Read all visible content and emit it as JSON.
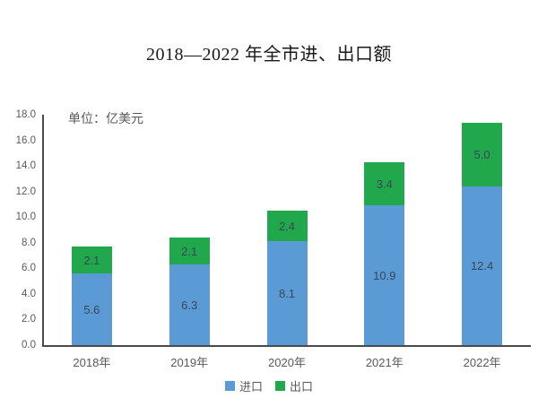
{
  "title": "2018—2022 年全市进、出口额",
  "unit_label": "单位：亿美元",
  "colors": {
    "import": "#5B9BD5",
    "export": "#21A84D",
    "axis": "#4A4A4A",
    "tick_text": "#595959",
    "value_text": "#3A4656"
  },
  "legend": {
    "items": [
      {
        "label": "进口",
        "color_key": "import"
      },
      {
        "label": "出口",
        "color_key": "export"
      }
    ]
  },
  "chart_data": {
    "type": "bar",
    "stacked": true,
    "title": "2018—2022 年全市进、出口额",
    "unit": "亿美元",
    "categories": [
      "2018年",
      "2019年",
      "2020年",
      "2021年",
      "2022年"
    ],
    "series": [
      {
        "name": "进口",
        "color_key": "import",
        "values": [
          5.6,
          6.3,
          8.1,
          10.9,
          12.4
        ]
      },
      {
        "name": "出口",
        "color_key": "export",
        "values": [
          2.1,
          2.1,
          2.4,
          3.4,
          5.0
        ]
      }
    ],
    "totals": [
      7.7,
      8.4,
      10.5,
      14.3,
      17.4
    ],
    "ylim": [
      0,
      18
    ],
    "ytick_step": 2,
    "ytick_labels": [
      "0.0",
      "2.0",
      "4.0",
      "6.0",
      "8.0",
      "10.0",
      "12.0",
      "14.0",
      "16.0",
      "18.0"
    ],
    "grid": false,
    "legend_position": "bottom"
  }
}
